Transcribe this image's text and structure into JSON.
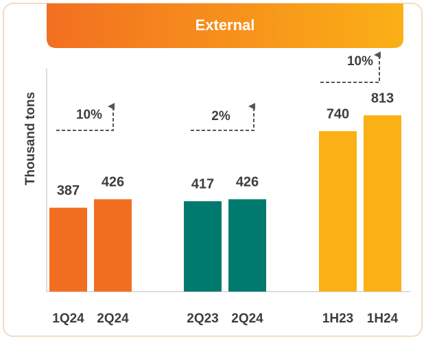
{
  "chart_data": {
    "type": "bar",
    "title": "External",
    "ylabel": "Thousand tons",
    "categories": [
      "1Q24",
      "2Q24",
      "2Q23",
      "2Q24",
      "1H23",
      "1H24"
    ],
    "values": [
      387,
      426,
      417,
      426,
      740,
      813
    ],
    "colors": [
      "#f26f21",
      "#f26f21",
      "#007a6e",
      "#007a6e",
      "#fbb016",
      "#fbb016"
    ],
    "ylim": [
      0,
      1000
    ],
    "annotations": [
      "10%",
      "2%",
      "10%"
    ]
  }
}
